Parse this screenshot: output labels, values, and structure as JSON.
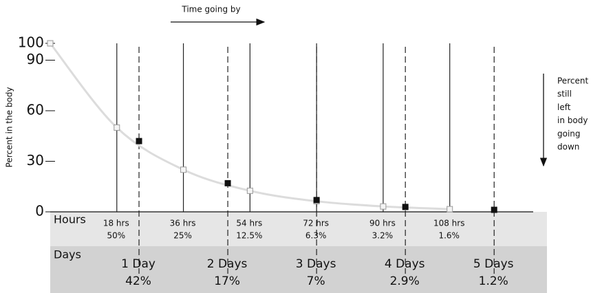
{
  "chart_data": {
    "type": "line",
    "title": "Time going by",
    "y_label": "Percent in the body",
    "annotation": [
      "Percent",
      "still",
      "left",
      "in body",
      "going",
      "down"
    ],
    "xlim": [
      0,
      130
    ],
    "ylim": [
      0,
      100
    ],
    "yticks": [
      0,
      30,
      60,
      90,
      100
    ],
    "series": [
      {
        "name": "Hours",
        "color": "#999999",
        "marker": "hollow",
        "x": [
          0,
          18,
          36,
          54,
          72,
          90,
          108
        ],
        "values": [
          100,
          50,
          25,
          12.5,
          6.3,
          3.2,
          1.6
        ],
        "x_labels": [
          null,
          "18 hrs",
          "36 hrs",
          "54 hrs",
          "72 hrs",
          "90 hrs",
          "108 hrs"
        ],
        "value_labels": [
          null,
          "50%",
          "25%",
          "12.5%",
          "6.3%",
          "3.2%",
          "1.6%"
        ]
      },
      {
        "name": "Days",
        "color": "#111111",
        "marker": "filled",
        "x": [
          24,
          48,
          72,
          96,
          120
        ],
        "values": [
          42,
          17,
          7,
          2.9,
          1.2
        ],
        "x_labels": [
          "1 Day",
          "2 Days",
          "3 Days",
          "4 Days",
          "5 Days"
        ],
        "value_labels": [
          "42%",
          "17%",
          "7%",
          "2.9%",
          "1.2%"
        ]
      }
    ]
  }
}
